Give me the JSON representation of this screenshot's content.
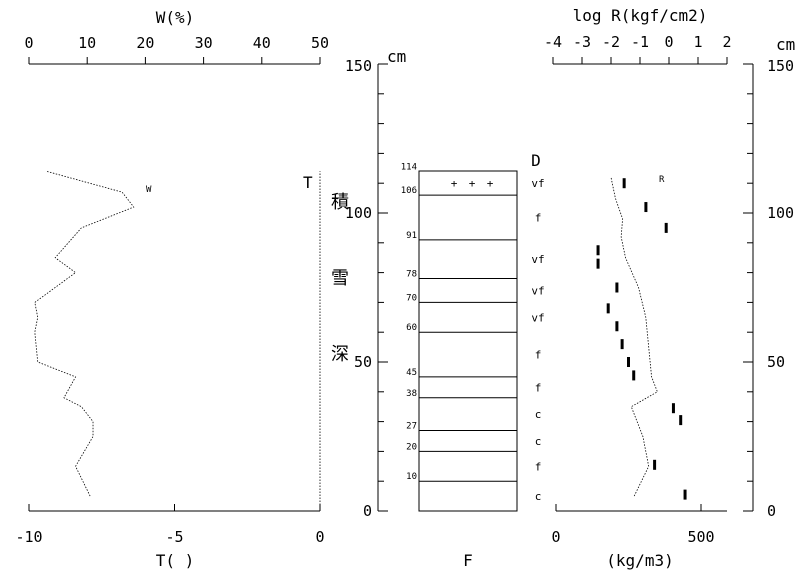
{
  "chart_data": [
    {
      "type": "line",
      "panel": "water-content-temperature",
      "top_axis": {
        "label": "W(%)",
        "ticks": [
          0,
          10,
          20,
          30,
          40,
          50
        ],
        "range": [
          0,
          50
        ]
      },
      "bottom_axis": {
        "label": "T(  )",
        "ticks": [
          -10,
          -5,
          0
        ],
        "range": [
          -10,
          0
        ]
      },
      "y_range_cm": [
        0,
        150
      ],
      "series": [
        {
          "name": "W",
          "unit_axis": "top",
          "points": [
            [
              10.5,
              5
            ],
            [
              8,
              15
            ],
            [
              11,
              25
            ],
            [
              11,
              30
            ],
            [
              9,
              35
            ],
            [
              6,
              38
            ],
            [
              8,
              45
            ],
            [
              1.5,
              50
            ],
            [
              1,
              60
            ],
            [
              1.5,
              65
            ],
            [
              1,
              70
            ],
            [
              8,
              80
            ],
            [
              4.5,
              85
            ],
            [
              9,
              95
            ],
            [
              18,
              102
            ],
            [
              16,
              107
            ],
            [
              3,
              114
            ]
          ]
        },
        {
          "name": "T",
          "unit_axis": "bottom",
          "points": [
            [
              0,
              0
            ],
            [
              0,
              114
            ]
          ]
        }
      ],
      "series_labels": {
        "w": "W",
        "t": "T"
      }
    },
    {
      "type": "table",
      "panel": "snow-layers",
      "xlabel": "F",
      "snow_depth_cm": 114,
      "top_code": "D",
      "boundaries_cm": [
        {
          "label": "114",
          "value": 114
        },
        {
          "label": "106",
          "value": 106
        },
        {
          "label": "91",
          "value": 91
        },
        {
          "label": "78",
          "value": 78
        },
        {
          "label": "70",
          "value": 70
        },
        {
          "label": "60",
          "value": 60
        },
        {
          "label": "45",
          "value": 45
        },
        {
          "label": "38",
          "value": 38
        },
        {
          "label": "27",
          "value": 27
        },
        {
          "label": "20",
          "value": 20
        },
        {
          "label": "10",
          "value": 10
        }
      ],
      "layers": [
        {
          "label": "vf",
          "depth_cm": 110
        },
        {
          "label": "f",
          "depth_cm": 98.5
        },
        {
          "label": "vf",
          "depth_cm": 84.5
        },
        {
          "label": "vf",
          "depth_cm": 74
        },
        {
          "label": "vf",
          "depth_cm": 65
        },
        {
          "label": "f",
          "depth_cm": 52.5
        },
        {
          "label": "f",
          "depth_cm": 41.5
        },
        {
          "label": "c",
          "depth_cm": 32.5
        },
        {
          "label": "c",
          "depth_cm": 23.5
        },
        {
          "label": "f",
          "depth_cm": 15
        },
        {
          "label": "c",
          "depth_cm": 5
        }
      ],
      "marks": {
        "symbol": "+",
        "depth_cm": 110,
        "count": 3
      }
    },
    {
      "type": "scatter",
      "panel": "density-resistance",
      "xlabel": "(kg/m3)",
      "top_axis": {
        "label": "log R(kgf/cm2)",
        "ticks": [
          -4,
          -3,
          -2,
          -1,
          0,
          1,
          2
        ],
        "range": [
          -4,
          2
        ]
      },
      "bottom_axis": {
        "ticks": [
          0,
          500
        ],
        "range": [
          0,
          500
        ]
      },
      "y_range_cm": [
        0,
        150
      ],
      "density": [
        {
          "depth_cm": 110,
          "value": 235
        },
        {
          "depth_cm": 102,
          "value": 310
        },
        {
          "depth_cm": 95,
          "value": 380
        },
        {
          "depth_cm": 87.5,
          "value": 145
        },
        {
          "depth_cm": 83,
          "value": 145
        },
        {
          "depth_cm": 75,
          "value": 210
        },
        {
          "depth_cm": 68,
          "value": 180
        },
        {
          "depth_cm": 62,
          "value": 210
        },
        {
          "depth_cm": 56,
          "value": 228
        },
        {
          "depth_cm": 50,
          "value": 250
        },
        {
          "depth_cm": 45.5,
          "value": 268
        },
        {
          "depth_cm": 34.5,
          "value": 405
        },
        {
          "depth_cm": 30.5,
          "value": 430
        },
        {
          "depth_cm": 15.5,
          "value": 340
        },
        {
          "depth_cm": 5.5,
          "value": 445
        }
      ],
      "series": [
        {
          "name": "R",
          "unit_axis": "top",
          "points": [
            [
              -1.2,
              5
            ],
            [
              -0.7,
              15
            ],
            [
              -0.9,
              25
            ],
            [
              -1.3,
              35
            ],
            [
              -0.4,
              40
            ],
            [
              -0.6,
              45
            ],
            [
              -0.7,
              55
            ],
            [
              -0.8,
              65
            ],
            [
              -1.05,
              75
            ],
            [
              -1.5,
              85
            ],
            [
              -1.65,
              92
            ],
            [
              -1.6,
              98
            ],
            [
              -1.85,
              105
            ],
            [
              -2.0,
              112
            ]
          ]
        }
      ],
      "series_labels": {
        "r": "R"
      }
    }
  ],
  "depth_axis": {
    "unit": "cm",
    "ticks": [
      0,
      50,
      100,
      150
    ]
  },
  "vertical_title": [
    "積",
    "雪",
    "深"
  ]
}
